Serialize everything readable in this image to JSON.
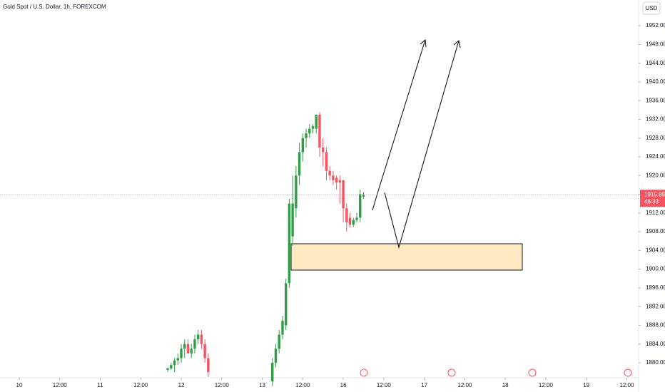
{
  "chart_data": {
    "type": "candlestick",
    "title": "Gold Spot / U.S. Dollar, 1h, FOREXCOM",
    "currency": "USD",
    "last_price": 1915.89,
    "countdown": "46:33",
    "up_color": "#2f9e44",
    "down_color": "#f7525f",
    "ylim": [
      1876.8,
      1957.5
    ],
    "yticks": [
      {
        "value": 1880,
        "label": "1880.00"
      },
      {
        "value": 1884,
        "label": "1884.00"
      },
      {
        "value": 1888,
        "label": "1888.00"
      },
      {
        "value": 1892,
        "label": "1892.00"
      },
      {
        "value": 1896,
        "label": "1896.00"
      },
      {
        "value": 1900,
        "label": "1900.00"
      },
      {
        "value": 1904,
        "label": "1904.00"
      },
      {
        "value": 1908,
        "label": "1908.00"
      },
      {
        "value": 1912,
        "label": "1912.00"
      },
      {
        "value": 1916,
        "label": "1916.00"
      },
      {
        "value": 1920,
        "label": "1920.00"
      },
      {
        "value": 1924,
        "label": "1924.00"
      },
      {
        "value": 1928,
        "label": "1928.00"
      },
      {
        "value": 1932,
        "label": "1932.00"
      },
      {
        "value": 1936,
        "label": "1936.00"
      },
      {
        "value": 1940,
        "label": "1940.00"
      },
      {
        "value": 1944,
        "label": "1944.00"
      },
      {
        "value": 1948,
        "label": "1948.00"
      },
      {
        "value": 1952,
        "label": "1952.00"
      }
    ],
    "xlim": [
      -5.7,
      183.5
    ],
    "xticks": [
      {
        "value": 0,
        "label": "10"
      },
      {
        "value": 12,
        "label": "12:00"
      },
      {
        "value": 24,
        "label": "11"
      },
      {
        "value": 36,
        "label": "12:00"
      },
      {
        "value": 48,
        "label": "12"
      },
      {
        "value": 60,
        "label": "12:00"
      },
      {
        "value": 72,
        "label": "13"
      },
      {
        "value": 84,
        "label": "12:00"
      },
      {
        "value": 96,
        "label": "16"
      },
      {
        "value": 108,
        "label": "12:00"
      },
      {
        "value": 120,
        "label": "17"
      },
      {
        "value": 132,
        "label": "12:00"
      },
      {
        "value": 144,
        "label": "18"
      },
      {
        "value": 156,
        "label": "12:00"
      },
      {
        "value": 168,
        "label": "19"
      },
      {
        "value": 180,
        "label": "12:00"
      }
    ],
    "x": [
      44,
      45,
      46,
      47,
      48,
      49,
      50,
      51,
      52,
      53,
      54,
      55,
      56,
      75,
      76,
      77,
      78,
      79,
      80,
      81,
      82,
      83,
      84,
      85,
      86,
      87,
      88,
      89,
      90,
      91,
      92,
      93,
      94,
      95,
      96,
      97,
      98,
      99,
      100,
      101,
      102
    ],
    "open": [
      1878.5,
      1878.8,
      1879.5,
      1880.5,
      1881,
      1883,
      1884,
      1882,
      1883,
      1885,
      1886,
      1884,
      1881,
      1876,
      1880,
      1883,
      1886,
      1888,
      1897,
      1907,
      1913,
      1920,
      1925,
      1928,
      1929,
      1930,
      1930,
      1933,
      1926,
      1925,
      1921,
      1920,
      1919.5,
      1919,
      1919,
      1913,
      1911,
      1909.5,
      1910.5,
      1911,
      1915.5
    ],
    "high": [
      1879,
      1880,
      1881,
      1882,
      1884,
      1885,
      1885,
      1884,
      1886,
      1887,
      1887,
      1885,
      1882,
      1881,
      1884,
      1887,
      1890,
      1898,
      1915,
      1920,
      1922,
      1927,
      1929,
      1930,
      1931,
      1931,
      1933,
      1933.5,
      1928,
      1926,
      1922,
      1921,
      1920,
      1920,
      1919,
      1914,
      1912,
      1911,
      1912,
      1917,
      1916.5
    ],
    "low": [
      1878,
      1878.5,
      1878,
      1879.5,
      1880,
      1881,
      1882,
      1881,
      1882,
      1884,
      1883,
      1880,
      1877,
      1875,
      1879,
      1882,
      1885,
      1887,
      1896,
      1905,
      1911,
      1918,
      1923,
      1926,
      1928,
      1929,
      1929,
      1924,
      1922,
      1919,
      1919,
      1918,
      1917,
      1914,
      1910,
      1908,
      1909,
      1909,
      1910,
      1910,
      1915
    ],
    "close": [
      1878.8,
      1879.5,
      1880.5,
      1881,
      1883,
      1884,
      1882,
      1883,
      1885,
      1886,
      1884,
      1881,
      1878,
      1880,
      1883,
      1886,
      1889,
      1897,
      1914,
      1914,
      1920,
      1925,
      1928,
      1929,
      1930,
      1930.5,
      1933,
      1926,
      1925,
      1921,
      1920,
      1919,
      1918.5,
      1918.5,
      1913,
      1910,
      1909.5,
      1910.5,
      1911,
      1916,
      1915.89
    ]
  }
}
